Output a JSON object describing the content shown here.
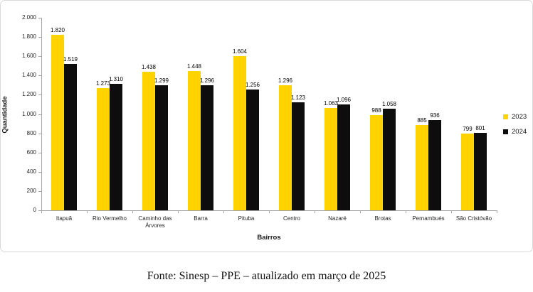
{
  "chart_data": {
    "type": "bar",
    "title": "",
    "xlabel": "Bairros",
    "ylabel": "Quantidade",
    "ylim": [
      0,
      2000
    ],
    "ytick_step": 200,
    "ytick_labels": [
      "0",
      "200",
      "400",
      "600",
      "800",
      "1.000",
      "1.200",
      "1.400",
      "1.600",
      "1.800",
      "2.000"
    ],
    "grid": false,
    "legend_position": "right",
    "categories": [
      "Itapuã",
      "Rio Vermelho",
      "Caminho das Árvores",
      "Barra",
      "Pituba",
      "Centro",
      "Nazaré",
      "Brotas",
      "Pernambués",
      "São Cristóvão"
    ],
    "series": [
      {
        "name": "2023",
        "color": "#FFD300",
        "values": [
          1820,
          1273,
          1438,
          1448,
          1604,
          1296,
          1063,
          988,
          885,
          799
        ],
        "labels": [
          "1.820",
          "1.273",
          "1.438",
          "1.448",
          "1.604",
          "1.296",
          "1.063",
          "988",
          "885",
          "799"
        ]
      },
      {
        "name": "2024",
        "color": "#0D0D0D",
        "values": [
          1519,
          1310,
          1299,
          1296,
          1256,
          1123,
          1096,
          1058,
          936,
          801
        ],
        "labels": [
          "1.519",
          "1.310",
          "1.299",
          "1.296",
          "1.256",
          "1.123",
          "1.096",
          "1.058",
          "936",
          "801"
        ]
      }
    ]
  },
  "colors": {
    "axis_line": "#A6A6A6",
    "box_border": "#D9D9D9",
    "series_2023": "#FFD300",
    "series_2024": "#0D0D0D"
  },
  "footer": {
    "source_text": "Fonte: Sinesp – PPE – atualizado em março de 2025"
  }
}
